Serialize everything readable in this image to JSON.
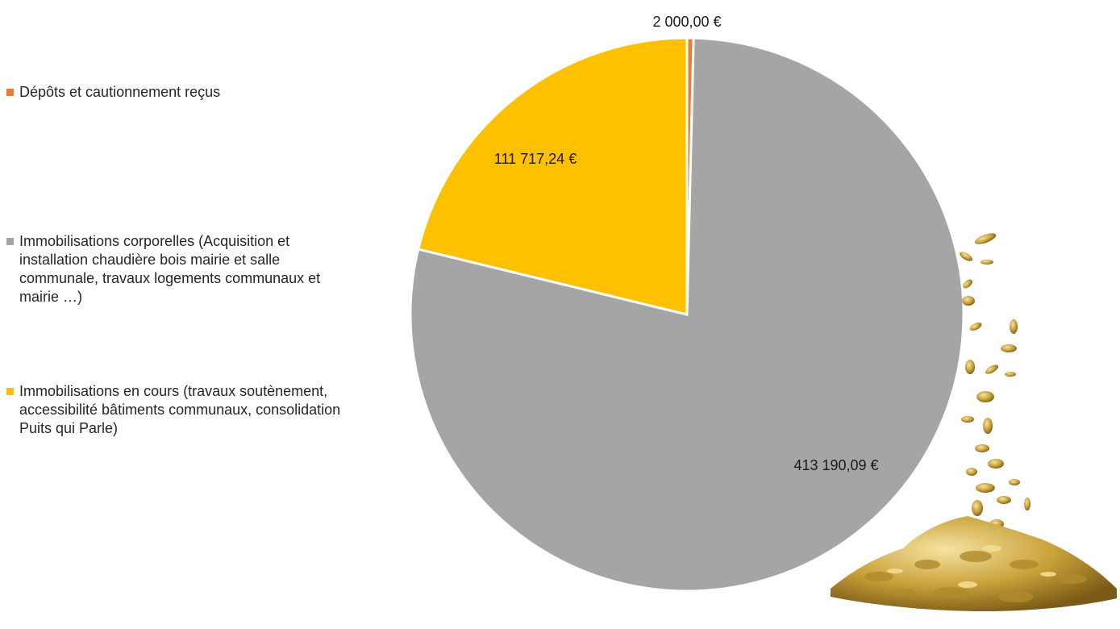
{
  "chart_data": {
    "type": "pie",
    "title": "",
    "legend_position": "left",
    "slices": [
      {
        "label": "Dépôts et cautionnement reçus",
        "value": 2000.0,
        "value_label": "2 000,00 €",
        "color": "#ED7D31"
      },
      {
        "label": "Immobilisations corporelles (Acquisition et installation chaudière bois mairie et salle communale, travaux logements communaux et mairie …)",
        "value": 413190.09,
        "value_label": "413 190,09 €",
        "color": "#A5A5A5"
      },
      {
        "label": "Immobilisations en cours (travaux soutènement, accessibilité bâtiments communaux, consolidation Puits qui Parle)",
        "value": 111717.24,
        "value_label": "111 717,24 €",
        "color": "#FFC000"
      }
    ]
  },
  "decoration": {
    "icon": "falling-gold-coins-icon"
  }
}
